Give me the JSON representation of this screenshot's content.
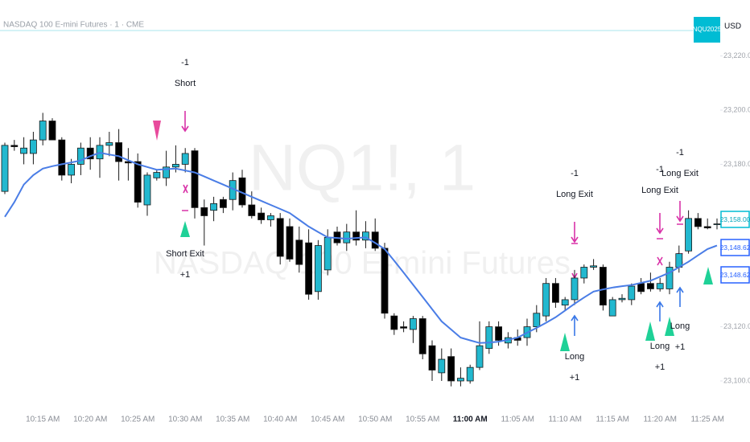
{
  "chart_data": {
    "type": "candlestick",
    "title": "NASDAQ 100 E-mini Futures · 1 · CME",
    "symbol_badge": "NQU2025",
    "currency": "USD",
    "watermark": {
      "symbol": "NQ1!, 1",
      "description": "NASDAQ 100 E-mini Futures"
    },
    "categories": [
      null,
      null,
      null,
      null,
      "10:15 AM",
      null,
      null,
      null,
      null,
      "10:20 AM",
      null,
      null,
      null,
      null,
      "10:25 AM",
      null,
      null,
      null,
      null,
      "10:30 AM",
      null,
      null,
      null,
      null,
      "10:35 AM",
      null,
      null,
      null,
      null,
      "10:40 AM",
      null,
      null,
      null,
      null,
      "10:45 AM",
      null,
      null,
      null,
      null,
      "10:50 AM",
      null,
      null,
      null,
      null,
      "10:55 AM",
      null,
      null,
      null,
      null,
      "11:00 AM",
      null,
      null,
      null,
      null,
      "11:05 AM",
      null,
      null,
      null,
      null,
      "11:10 AM",
      null,
      null,
      null,
      null,
      "11:15 AM",
      null,
      null,
      null,
      null,
      "11:20 AM",
      null,
      null,
      null,
      null,
      "11:25 AM",
      null
    ],
    "open": [
      23170,
      23187,
      23184,
      23184,
      23189,
      23196,
      23189,
      23176,
      23180,
      23186,
      23182,
      23187,
      23188,
      23181,
      23181,
      23165,
      23175,
      23175,
      23179,
      23180,
      23185,
      23164,
      23163,
      23167,
      23167,
      23175,
      23165,
      23162,
      23159.5,
      23160,
      23157,
      23152,
      23151,
      23133,
      23141,
      23155,
      23151,
      23155,
      23152,
      23155,
      23149,
      23124,
      23120,
      23119,
      23123,
      23113,
      23103,
      23109,
      23100,
      23100,
      23105,
      23112,
      23120,
      23114,
      23116,
      23116,
      23120,
      23124,
      23136,
      23128,
      23130,
      23138,
      23142,
      23142,
      23124,
      23130,
      23130,
      23136,
      23136,
      23134,
      23134,
      23142,
      23148,
      23160,
      23157,
      23158
    ],
    "high": [
      23188,
      23189,
      23190,
      23192,
      23199,
      23197,
      23190,
      23182,
      23188,
      23190,
      23190,
      23192,
      23193,
      23186,
      23184,
      23177,
      23178,
      23185,
      23187,
      23186,
      23186,
      23167,
      23168,
      23168,
      23177,
      23178,
      23170,
      23164,
      23162,
      23162,
      23160,
      23157,
      23156,
      23152,
      23156,
      23157,
      23158,
      23163,
      23159,
      23160,
      23151,
      23125,
      23122,
      23124,
      23124,
      23115,
      23112,
      23112,
      23105,
      23106,
      23122,
      23122,
      23122,
      23118,
      23119,
      23123,
      23128,
      23138,
      23138,
      23131,
      23141,
      23143,
      23145,
      23143,
      23131,
      23132,
      23136,
      23138,
      23140,
      23138,
      23144,
      23150,
      23163,
      23162,
      23160,
      23160
    ],
    "low": [
      23169,
      23185,
      23180,
      23180,
      23187,
      23189,
      23174,
      23173,
      23176,
      23178,
      23175,
      23183,
      23174,
      23174,
      23164,
      23161,
      23174,
      23172,
      23177,
      23177,
      23160,
      23150,
      23159,
      23162,
      23163,
      23164,
      23160,
      23158,
      23157,
      23143,
      23144,
      23140,
      23130,
      23130,
      23139,
      23150,
      23148,
      23150,
      23149,
      23148,
      23123,
      23117,
      23118,
      23114,
      23108,
      23100,
      23100,
      23098,
      23098,
      23099,
      23104,
      23110,
      23113,
      23112,
      23113,
      23113,
      23118,
      23122,
      23127,
      23126,
      23128,
      23136,
      23141,
      23126,
      23124,
      23129,
      23128,
      23132,
      23133,
      23133,
      23132,
      23140,
      23147,
      23156,
      23156,
      23156
    ],
    "close": [
      23187,
      23186.5,
      23186,
      23189,
      23196,
      23189,
      23176,
      23180,
      23186,
      23182,
      23187,
      23188,
      23181,
      23180.5,
      23166,
      23176,
      23177,
      23179,
      23180,
      23184,
      23164,
      23161,
      23165.5,
      23164,
      23174,
      23165,
      23161,
      23159.5,
      23161,
      23146,
      23145,
      23143,
      23132,
      23150,
      23153,
      23151,
      23155,
      23152,
      23155,
      23149,
      23125,
      23119,
      23119.5,
      23123,
      23110,
      23104,
      23108,
      23100,
      23101,
      23105,
      23113,
      23120,
      23115,
      23116,
      23115,
      23120,
      23125,
      23136,
      23129,
      23130,
      23138,
      23142,
      23142.5,
      23128,
      23130,
      23130.5,
      23135,
      23133,
      23134,
      23136,
      23142,
      23147,
      23160,
      23157,
      23156.5,
      23158
    ],
    "up_color": "#22b8cf",
    "down_color": "#000000",
    "ma": {
      "color": "#4a7de6",
      "values": [
        23160.6,
        23166,
        23172.5,
        23176,
        23178.4,
        23179.3,
        23180,
        23180.7,
        23181.4,
        23183,
        23184.3,
        23183.6,
        23183,
        23181.5,
        23180,
        23179,
        23178,
        23178.2,
        23178.4,
        23177.7,
        23177,
        23175.5,
        23174,
        23172.5,
        23171,
        23169.5,
        23168,
        23166.5,
        23165,
        23163.5,
        23162,
        23159.5,
        23157,
        23155,
        23153,
        23152.8,
        23152.5,
        23152.8,
        23153,
        23151,
        23148.7,
        23144.4,
        23140,
        23135.5,
        23131,
        23126.5,
        23122,
        23119,
        23116,
        23115,
        23114,
        23114.2,
        23114.5,
        23115.2,
        23116,
        23117.8,
        23119.6,
        23121.5,
        23123.5,
        23126,
        23128.5,
        23130.8,
        23133,
        23133.8,
        23134.5,
        23135,
        23135.4,
        23136.2,
        23137,
        23138.5,
        23140,
        23142,
        23144,
        23146.4,
        23148.7,
        23150
      ]
    },
    "ylim": [
      23090.8,
      23229.4
    ],
    "yticks": [
      {
        "value": 23100,
        "label": "23,100.00"
      },
      {
        "value": 23120,
        "label": "23,120.00"
      },
      {
        "value": 23180,
        "label": "23,180.00"
      },
      {
        "value": 23200,
        "label": "23,200.00"
      },
      {
        "value": 23220,
        "label": "23,220.00"
      }
    ],
    "price_labels": [
      "23,158.00",
      "23,148.62",
      "23,148.62"
    ],
    "annotations": [
      [
        "-1",
        "Short"
      ],
      [
        "Short Exit",
        "+1"
      ],
      [
        "-1",
        "Long Exit"
      ],
      [
        "Long",
        "+1"
      ],
      [
        "-1",
        "Long Exit"
      ],
      [
        "Long",
        "+1"
      ],
      [
        "-1",
        "Long Exit"
      ],
      [
        "Long",
        "+1"
      ]
    ]
  }
}
